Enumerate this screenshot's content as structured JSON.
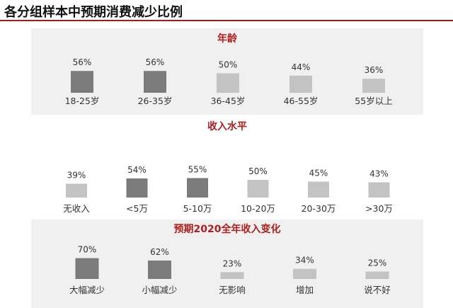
{
  "title": "各分组样本中预期消费减少比例",
  "colors": {
    "accent": "#a31c1c",
    "title_red": "#b01e1e",
    "bar_dark": "#7b7b7b",
    "bar_light": "#c3c3c3",
    "panel_bg": "#f0f0f0"
  },
  "chart_data": [
    {
      "type": "bar",
      "title": "年龄",
      "categories": [
        "18-25岁",
        "26-35岁",
        "36-45岁",
        "46-55岁",
        "55岁以上"
      ],
      "values": [
        56,
        56,
        50,
        44,
        36
      ],
      "labels": [
        "56%",
        "56%",
        "50%",
        "44%",
        "36%"
      ],
      "highlighted": [
        true,
        true,
        false,
        false,
        false
      ],
      "unit": "%",
      "ylim": [
        0,
        100
      ]
    },
    {
      "type": "bar",
      "title": "收入水平",
      "categories": [
        "无收入",
        "<5万",
        "5-10万",
        "10-20万",
        "20-30万",
        ">30万"
      ],
      "values": [
        39,
        54,
        55,
        50,
        45,
        43
      ],
      "labels": [
        "39%",
        "54%",
        "55%",
        "50%",
        "45%",
        "43%"
      ],
      "highlighted": [
        false,
        true,
        true,
        false,
        false,
        false
      ],
      "unit": "%",
      "ylim": [
        0,
        100
      ]
    },
    {
      "type": "bar",
      "title": "预期2020全年收入变化",
      "categories": [
        "大幅减少",
        "小幅减少",
        "无影响",
        "增加",
        "说不好"
      ],
      "values": [
        70,
        62,
        23,
        34,
        25
      ],
      "labels": [
        "70%",
        "62%",
        "23%",
        "34%",
        "25%"
      ],
      "highlighted": [
        true,
        true,
        false,
        false,
        false
      ],
      "unit": "%",
      "ylim": [
        0,
        100
      ]
    }
  ]
}
